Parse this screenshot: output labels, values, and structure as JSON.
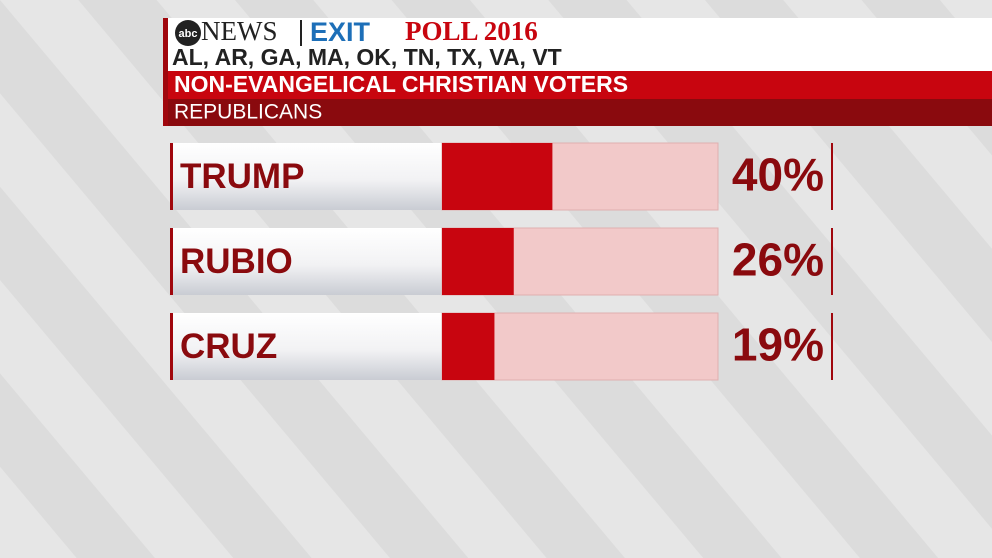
{
  "chart_data": {
    "type": "bar",
    "orientation": "horizontal",
    "logo": "abc",
    "network": "NEWS",
    "poll_name": "EXIT",
    "poll_year": "POLL 2016",
    "subtitle": "AL, AR, GA, MA, OK, TN, TX, VA, VT",
    "title": "NON-EVANGELICAL CHRISTIAN VOTERS",
    "group": "REPUBLICANS",
    "categories": [
      "TRUMP",
      "RUBIO",
      "CRUZ"
    ],
    "values": [
      40,
      26,
      19
    ],
    "value_labels": [
      "40%",
      "26%",
      "19%"
    ],
    "color": "#c8050f",
    "xlim": [
      0,
      100
    ]
  }
}
